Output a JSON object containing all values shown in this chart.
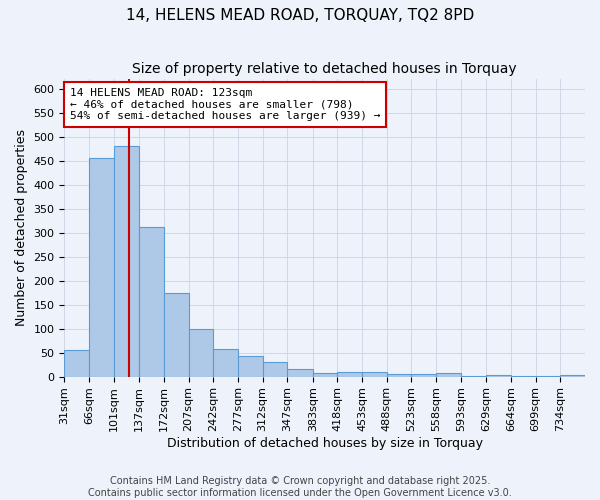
{
  "title": "14, HELENS MEAD ROAD, TORQUAY, TQ2 8PD",
  "subtitle": "Size of property relative to detached houses in Torquay",
  "xlabel": "Distribution of detached houses by size in Torquay",
  "ylabel": "Number of detached properties",
  "bin_labels": [
    "31sqm",
    "66sqm",
    "101sqm",
    "137sqm",
    "172sqm",
    "207sqm",
    "242sqm",
    "277sqm",
    "312sqm",
    "347sqm",
    "383sqm",
    "418sqm",
    "453sqm",
    "488sqm",
    "523sqm",
    "558sqm",
    "593sqm",
    "629sqm",
    "664sqm",
    "699sqm",
    "734sqm"
  ],
  "bin_edges": [
    31,
    66,
    101,
    137,
    172,
    207,
    242,
    277,
    312,
    347,
    383,
    418,
    453,
    488,
    523,
    558,
    593,
    629,
    664,
    699,
    734,
    769
  ],
  "values": [
    55,
    455,
    480,
    312,
    175,
    100,
    58,
    42,
    30,
    15,
    8,
    10,
    10,
    5,
    5,
    7,
    1,
    3,
    1,
    1,
    4
  ],
  "bar_color": "#aec9e8",
  "bar_edge_color": "#5b9bd5",
  "grid_color": "#d0d8e8",
  "background_color": "#eef2fa",
  "vline_x": 123,
  "vline_color": "#cc0000",
  "annotation_line1": "14 HELENS MEAD ROAD: 123sqm",
  "annotation_line2": "← 46% of detached houses are smaller (798)",
  "annotation_line3": "54% of semi-detached houses are larger (939) →",
  "annotation_box_color": "white",
  "annotation_box_edge": "#cc0000",
  "ylim": [
    0,
    620
  ],
  "yticks": [
    0,
    50,
    100,
    150,
    200,
    250,
    300,
    350,
    400,
    450,
    500,
    550,
    600
  ],
  "footer_line1": "Contains HM Land Registry data © Crown copyright and database right 2025.",
  "footer_line2": "Contains public sector information licensed under the Open Government Licence v3.0.",
  "title_fontsize": 11,
  "subtitle_fontsize": 10,
  "axis_label_fontsize": 9,
  "tick_fontsize": 8,
  "annotation_fontsize": 8,
  "footer_fontsize": 7
}
